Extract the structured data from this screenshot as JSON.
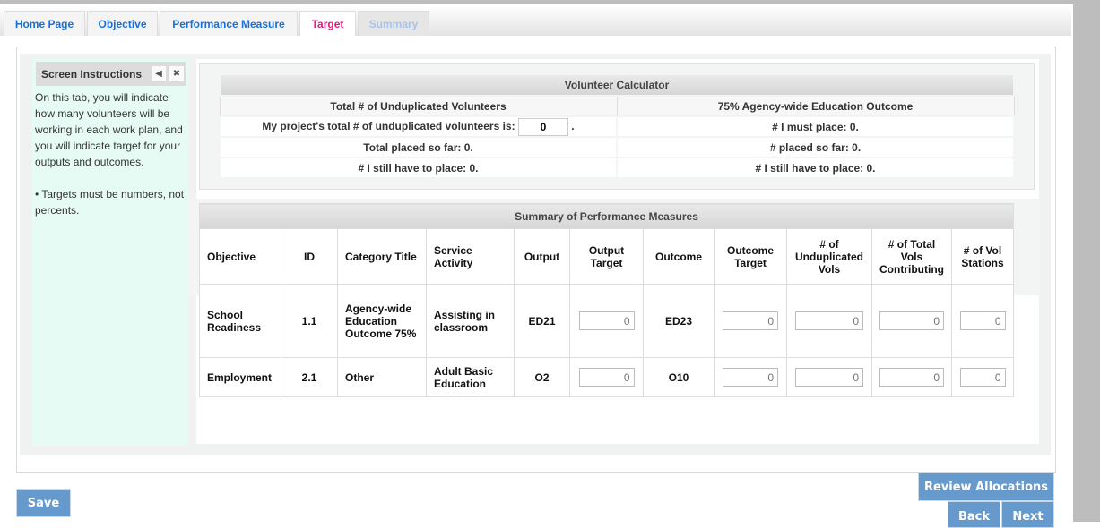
{
  "tabs": [
    {
      "label": "Home Page"
    },
    {
      "label": "Objective"
    },
    {
      "label": "Performance Measure"
    },
    {
      "label": "Target"
    },
    {
      "label": "Summary"
    }
  ],
  "sidebar": {
    "title": "Screen Instructions",
    "collapse_icon": "triangle-left-icon",
    "close_icon": "close-icon",
    "text": "On this tab, you will indicate how many volunteers will be working in each work plan, and you will indicate target for your outputs and outcomes.",
    "bullet": "• Targets must be numbers, not percents."
  },
  "calculator": {
    "title": "Volunteer Calculator",
    "left_header": "Total # of Unduplicated Volunteers",
    "right_header": "75% Agency-wide Education Outcome",
    "input_label": "My project's total # of unduplicated volunteers is:",
    "input_value": "0",
    "input_suffix": ".",
    "total_placed": "Total placed so far: 0.",
    "left_still": "# I still have to place: 0.",
    "must_place": "# I must place: 0.",
    "placed": "# placed so far: 0.",
    "right_still": "# I still have to place: 0."
  },
  "summary": {
    "title": "Summary of Performance Measures",
    "columns": [
      "Objective",
      "ID",
      "Category Title",
      "Service Activity",
      "Output",
      "Output Target",
      "Outcome",
      "Outcome Target",
      "# of Unduplicated Vols",
      "# of Total Vols Contributing",
      "# of Vol Stations"
    ],
    "rows": [
      {
        "objective": "School Readiness",
        "id": "1.1",
        "category": "Agency-wide Education Outcome 75%",
        "activity": "Assisting in classroom",
        "output": "ED21",
        "output_target": "0",
        "outcome": "ED23",
        "outcome_target": "0",
        "unduplicated": "0",
        "total_vols": "0",
        "stations": "0"
      },
      {
        "objective": "Employment",
        "id": "2.1",
        "category": "Other",
        "activity": "Adult Basic Education",
        "output": "O2",
        "output_target": "0",
        "outcome": "O10",
        "outcome_target": "0",
        "unduplicated": "0",
        "total_vols": "0",
        "stations": "0"
      }
    ]
  },
  "buttons": {
    "save": "Save",
    "review": "Review Allocations",
    "back": "Back",
    "next": "Next"
  }
}
